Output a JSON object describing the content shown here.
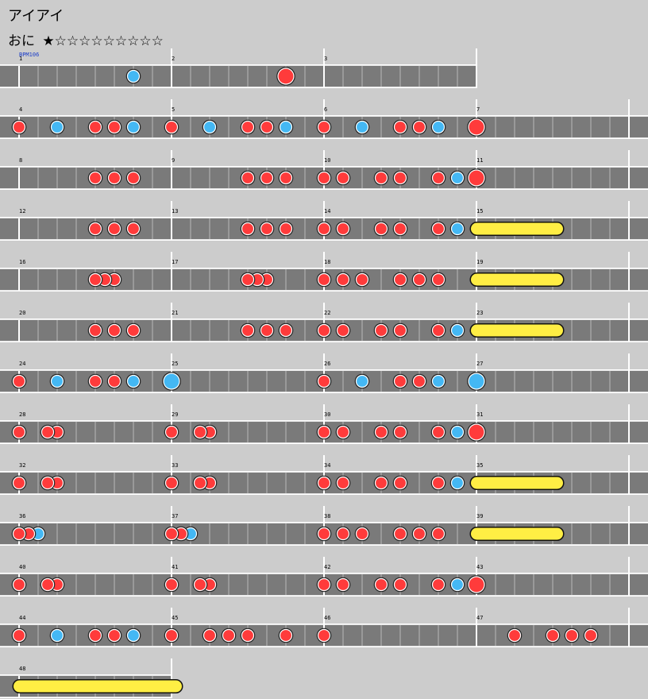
{
  "song": {
    "title": "アイアイ"
  },
  "difficulty": {
    "level_name": "おに",
    "stars": "★☆☆☆☆☆☆☆☆☆"
  },
  "chart": {
    "bpm_label": "BPM106",
    "colors": {
      "don": "#ff3b3b",
      "ka": "#44b8f4",
      "roll": "#ffee44",
      "lane": "#7a7a7a",
      "bg": "#cccccc"
    },
    "rows": [
      {
        "measures": [
          1,
          2,
          3
        ],
        "notes": [
          [
            "ka",
            6
          ],
          [
            "big-don",
            14
          ]
        ]
      },
      {
        "measures": [
          4,
          5,
          6,
          7
        ],
        "notes": [
          [
            "don",
            0
          ],
          [
            "ka",
            2
          ],
          [
            "don",
            4
          ],
          [
            "don",
            5
          ],
          [
            "ka",
            6
          ],
          [
            "don",
            8
          ],
          [
            "ka",
            10
          ],
          [
            "don",
            12
          ],
          [
            "don",
            13
          ],
          [
            "ka",
            14
          ],
          [
            "don",
            16
          ],
          [
            "ka",
            18
          ],
          [
            "don",
            20
          ],
          [
            "don",
            21
          ],
          [
            "ka",
            22
          ],
          [
            "big-don",
            24
          ]
        ]
      },
      {
        "measures": [
          8,
          9,
          10,
          11
        ],
        "notes": [
          [
            "don",
            4
          ],
          [
            "don",
            5
          ],
          [
            "don",
            6
          ],
          [
            "don",
            12
          ],
          [
            "don",
            13
          ],
          [
            "don",
            14
          ],
          [
            "don",
            16
          ],
          [
            "don",
            17
          ],
          [
            "don",
            19
          ],
          [
            "don",
            20
          ],
          [
            "don",
            22
          ],
          [
            "ka",
            23
          ],
          [
            "big-don",
            24
          ]
        ]
      },
      {
        "measures": [
          12,
          13,
          14,
          15
        ],
        "notes": [
          [
            "don",
            4
          ],
          [
            "don",
            5
          ],
          [
            "don",
            6
          ],
          [
            "don",
            12
          ],
          [
            "don",
            13
          ],
          [
            "don",
            14
          ],
          [
            "don",
            16
          ],
          [
            "don",
            17
          ],
          [
            "don",
            19
          ],
          [
            "don",
            20
          ],
          [
            "don",
            22
          ],
          [
            "ka",
            23
          ]
        ],
        "roll": [
          24,
          28.5
        ]
      },
      {
        "measures": [
          16,
          17,
          18,
          19
        ],
        "notes": [
          [
            "don",
            4
          ],
          [
            "don",
            4.5
          ],
          [
            "don",
            5
          ],
          [
            "don",
            12
          ],
          [
            "don",
            12.5
          ],
          [
            "don",
            13
          ],
          [
            "don",
            16
          ],
          [
            "don",
            17
          ],
          [
            "don",
            18
          ],
          [
            "don",
            20
          ],
          [
            "don",
            21
          ],
          [
            "don",
            22
          ]
        ],
        "roll": [
          24,
          28.5
        ]
      },
      {
        "measures": [
          20,
          21,
          22,
          23
        ],
        "notes": [
          [
            "don",
            4
          ],
          [
            "don",
            5
          ],
          [
            "don",
            6
          ],
          [
            "don",
            12
          ],
          [
            "don",
            13
          ],
          [
            "don",
            14
          ],
          [
            "don",
            16
          ],
          [
            "don",
            17
          ],
          [
            "don",
            19
          ],
          [
            "don",
            20
          ],
          [
            "don",
            22
          ],
          [
            "ka",
            23
          ]
        ],
        "roll": [
          24,
          28.5
        ]
      },
      {
        "measures": [
          24,
          25,
          26,
          27
        ],
        "notes": [
          [
            "don",
            0
          ],
          [
            "ka",
            2
          ],
          [
            "don",
            4
          ],
          [
            "don",
            5
          ],
          [
            "ka",
            6
          ],
          [
            "big-ka",
            8
          ],
          [
            "don",
            16
          ],
          [
            "ka",
            18
          ],
          [
            "don",
            20
          ],
          [
            "don",
            21
          ],
          [
            "ka",
            22
          ],
          [
            "big-ka",
            24
          ]
        ]
      },
      {
        "measures": [
          28,
          29,
          30,
          31
        ],
        "notes": [
          [
            "don",
            0
          ],
          [
            "don",
            1.5
          ],
          [
            "don",
            2
          ],
          [
            "don",
            8
          ],
          [
            "don",
            9.5
          ],
          [
            "don",
            10
          ],
          [
            "don",
            16
          ],
          [
            "don",
            17
          ],
          [
            "don",
            19
          ],
          [
            "don",
            20
          ],
          [
            "don",
            22
          ],
          [
            "ka",
            23
          ],
          [
            "big-don",
            24
          ]
        ]
      },
      {
        "measures": [
          32,
          33,
          34,
          35
        ],
        "notes": [
          [
            "don",
            0
          ],
          [
            "don",
            1.5
          ],
          [
            "don",
            2
          ],
          [
            "don",
            8
          ],
          [
            "don",
            9.5
          ],
          [
            "don",
            10
          ],
          [
            "don",
            16
          ],
          [
            "don",
            17
          ],
          [
            "don",
            19
          ],
          [
            "don",
            20
          ],
          [
            "don",
            22
          ],
          [
            "ka",
            23
          ]
        ],
        "roll": [
          24,
          28.5
        ]
      },
      {
        "measures": [
          36,
          37,
          38,
          39
        ],
        "notes": [
          [
            "don",
            0
          ],
          [
            "don",
            0.5
          ],
          [
            "ka",
            1
          ],
          [
            "don",
            8
          ],
          [
            "don",
            8.5
          ],
          [
            "ka",
            9
          ],
          [
            "don",
            16
          ],
          [
            "don",
            17
          ],
          [
            "don",
            18
          ],
          [
            "don",
            20
          ],
          [
            "don",
            21
          ],
          [
            "don",
            22
          ]
        ],
        "roll": [
          24,
          28.5
        ]
      },
      {
        "measures": [
          40,
          41,
          42,
          43
        ],
        "notes": [
          [
            "don",
            0
          ],
          [
            "don",
            1.5
          ],
          [
            "don",
            2
          ],
          [
            "don",
            8
          ],
          [
            "don",
            9.5
          ],
          [
            "don",
            10
          ],
          [
            "don",
            16
          ],
          [
            "don",
            17
          ],
          [
            "don",
            19
          ],
          [
            "don",
            20
          ],
          [
            "don",
            22
          ],
          [
            "ka",
            23
          ],
          [
            "big-don",
            24
          ]
        ]
      },
      {
        "measures": [
          44,
          45,
          46,
          47
        ],
        "notes": [
          [
            "don",
            0
          ],
          [
            "ka",
            2
          ],
          [
            "don",
            4
          ],
          [
            "don",
            5
          ],
          [
            "ka",
            6
          ],
          [
            "don",
            8
          ],
          [
            "don",
            10
          ],
          [
            "don",
            11
          ],
          [
            "don",
            12
          ],
          [
            "don",
            14
          ],
          [
            "don",
            16
          ],
          [
            "don",
            26
          ],
          [
            "don",
            28
          ],
          [
            "don",
            29
          ],
          [
            "don",
            30
          ]
        ]
      },
      {
        "measures": [
          48
        ],
        "notes": [],
        "roll": [
          0,
          8.5
        ]
      }
    ]
  }
}
